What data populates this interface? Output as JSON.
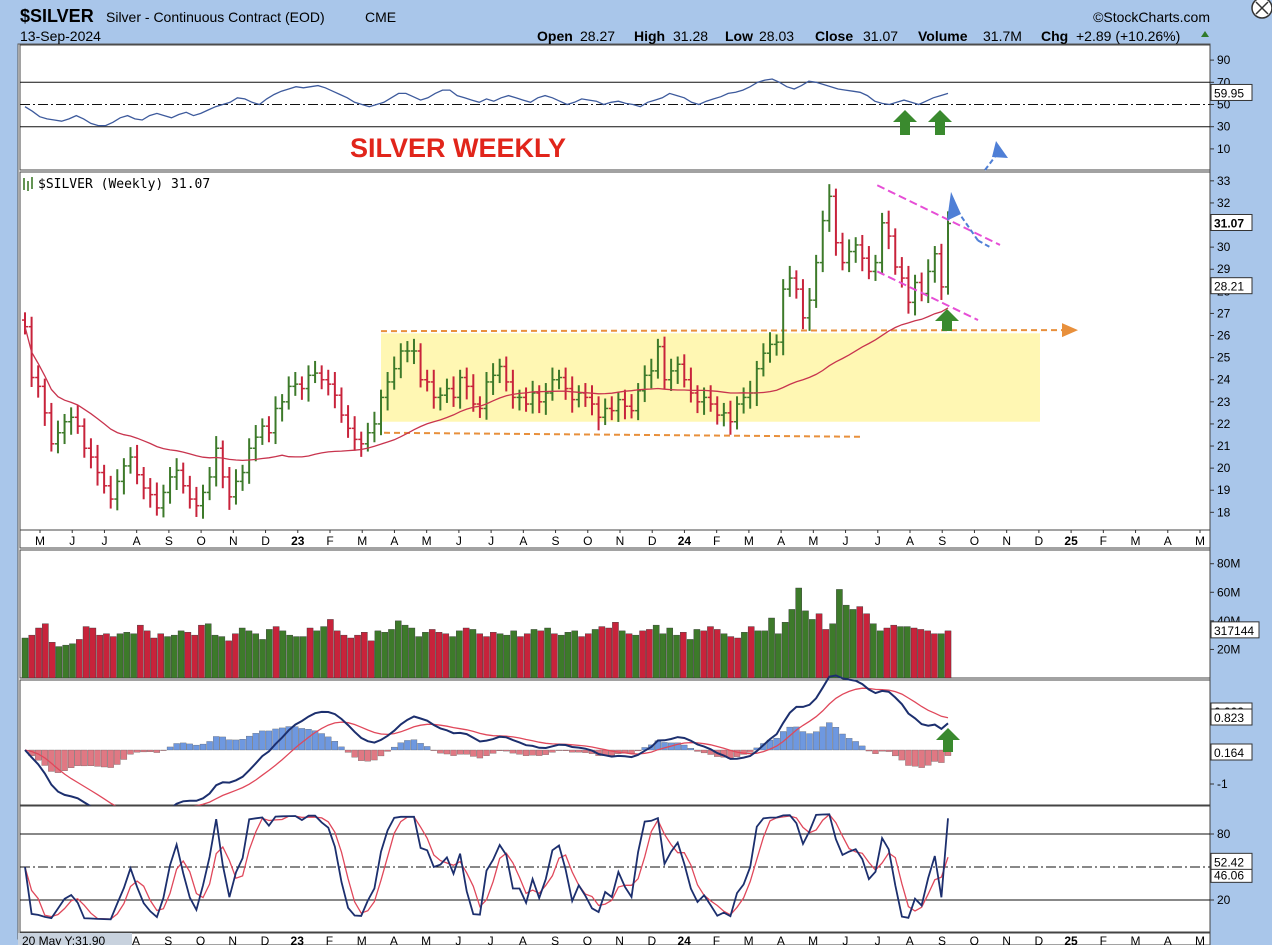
{
  "header": {
    "symbol": "$SILVER",
    "name": "Silver - Continuous Contract (EOD)",
    "exchange": "CME",
    "date": "13-Sep-2024",
    "brand": "©StockCharts.com",
    "quote": {
      "open_label": "Open",
      "open": "28.27",
      "high_label": "High",
      "high": "31.28",
      "low_label": "Low",
      "low": "28.03",
      "close_label": "Close",
      "close": "31.07",
      "volume_label": "Volume",
      "volume": "31.7M",
      "chg_label": "Chg",
      "chg": "+2.89 (+10.26%)"
    }
  },
  "chart_title": "SILVER WEEKLY",
  "price_legend": "$SILVER (Weekly) 31.07",
  "footer_readout": "20 May Y:31.90",
  "colors": {
    "up": "#3d7a2a",
    "down": "#c8233b",
    "ma": "#c8344e",
    "macd": "#1c2f6e",
    "signal": "#e0485b",
    "hist_pos": "#6e98e0",
    "hist_neg": "#e07883",
    "channel": "#e64ed6",
    "range": "#e8903c",
    "box": "#fff5a0",
    "arrow_green": "#3a8a2e",
    "arrow_blue": "#4f7fd6"
  },
  "chart_data": {
    "type": "candlestick",
    "timeframe": "weekly",
    "x_axis_labels": [
      "M",
      "J",
      "J",
      "A",
      "S",
      "O",
      "N",
      "D",
      "23",
      "F",
      "M",
      "A",
      "M",
      "J",
      "J",
      "A",
      "S",
      "O",
      "N",
      "D",
      "24",
      "F",
      "M",
      "A",
      "M",
      "J",
      "J",
      "A",
      "S",
      "O",
      "N",
      "D",
      "25",
      "F",
      "M",
      "A",
      "M"
    ],
    "x_axis_labels_bottom": [
      "A",
      "S",
      "O",
      "N",
      "D",
      "23",
      "F",
      "M",
      "A",
      "M",
      "J",
      "J",
      "A",
      "S",
      "O",
      "N",
      "D",
      "24",
      "F",
      "M",
      "A",
      "M",
      "J",
      "J",
      "A",
      "S",
      "O",
      "N",
      "D",
      "25",
      "F",
      "M",
      "A",
      "M"
    ],
    "price_panel": {
      "y_ticks": [
        18,
        19,
        20,
        21,
        22,
        23,
        24,
        25,
        26,
        27,
        28,
        29,
        30,
        31,
        32,
        33
      ],
      "ylim": [
        17.2,
        33.4
      ],
      "last": "31.07",
      "ma_last": "28.21",
      "weekly_closes": [
        26.4,
        24.1,
        23.7,
        22.5,
        21.1,
        21.6,
        22.1,
        22.3,
        21.9,
        20.9,
        20.5,
        19.8,
        19.2,
        18.6,
        19.4,
        20.1,
        20.5,
        19.7,
        19.1,
        18.8,
        18.2,
        18.9,
        19.6,
        19.9,
        19.2,
        18.6,
        18.3,
        18.9,
        19.6,
        20.9,
        19.6,
        18.7,
        19.4,
        19.8,
        20.9,
        21.4,
        21.9,
        21.6,
        22.7,
        23.0,
        23.7,
        23.8,
        23.6,
        24.2,
        24.3,
        24.0,
        23.8,
        23.3,
        22.4,
        21.8,
        21.3,
        21.1,
        21.6,
        22.0,
        23.2,
        23.9,
        24.5,
        25.3,
        25.3,
        25.3,
        24.0,
        23.9,
        23.2,
        23.3,
        23.6,
        23.2,
        24.1,
        23.7,
        22.9,
        22.7,
        23.9,
        24.2,
        24.6,
        23.9,
        23.2,
        23.2,
        22.9,
        23.4,
        23.0,
        23.4,
        24.0,
        24.1,
        23.6,
        23.1,
        23.4,
        23.2,
        22.9,
        22.3,
        22.7,
        22.6,
        23.1,
        22.8,
        22.6,
        23.5,
        24.2,
        24.4,
        25.5,
        24.0,
        24.4,
        24.7,
        24.0,
        23.4,
        23.0,
        23.2,
        22.9,
        22.4,
        22.5,
        22.1,
        22.9,
        23.2,
        23.4,
        24.5,
        25.2,
        25.6,
        25.7,
        28.1,
        28.6,
        28.1,
        26.8,
        27.6,
        29.3,
        31.2,
        32.3,
        30.2,
        29.3,
        29.8,
        30.1,
        29.5,
        28.9,
        29.3,
        31.1,
        30.5,
        29.1,
        28.6,
        27.5,
        28.4,
        27.9,
        28.9,
        29.7,
        28.2,
        31.07
      ],
      "annotations": {
        "consolidation_box": {
          "from_index": 54,
          "to_index": 168,
          "low": 22.1,
          "high": 26.1
        },
        "resistance_line": 26.2,
        "support_line": 21.6,
        "channel_upper": [
          [
            132,
            32.8
          ],
          [
            160,
            30.1
          ]
        ],
        "channel_lower": [
          [
            132,
            28.9
          ],
          [
            160,
            26.7
          ]
        ]
      }
    },
    "rsi_panel": {
      "y_ticks": [
        10,
        30,
        50,
        70,
        90
      ],
      "ylim": [
        0,
        100
      ],
      "last": "59.95",
      "series": [
        48,
        44,
        39,
        37,
        36,
        35,
        37,
        40,
        37,
        33,
        31,
        31,
        34,
        38,
        40,
        37,
        36,
        40,
        42,
        40,
        38,
        41,
        43,
        40,
        42,
        45,
        48,
        50,
        52,
        56,
        55,
        52,
        50,
        55,
        59,
        62,
        64,
        66,
        65,
        66,
        67,
        65,
        62,
        59,
        56,
        52,
        50,
        48,
        50,
        52,
        56,
        60,
        60,
        57,
        54,
        56,
        60,
        63,
        63,
        58,
        56,
        54,
        52,
        55,
        53,
        56,
        58,
        56,
        54,
        52,
        56,
        58,
        56,
        53,
        50,
        52,
        55,
        54,
        53,
        50,
        52,
        53,
        51,
        50,
        48,
        52,
        54,
        56,
        60,
        58,
        56,
        52,
        50,
        53,
        55,
        57,
        60,
        61,
        63,
        66,
        70,
        72,
        73,
        70,
        66,
        64,
        67,
        71,
        70,
        68,
        66,
        64,
        63,
        62,
        61,
        58,
        53,
        51,
        50,
        52,
        54,
        52,
        50,
        53,
        56,
        58,
        60
      ]
    },
    "volume_panel": {
      "y_ticks": [
        "20M",
        "40M",
        "60M",
        "80M"
      ],
      "ylim": [
        0,
        84
      ],
      "last_label": "317144",
      "values": [
        28,
        30,
        35,
        38,
        25,
        22,
        23,
        24,
        27,
        36,
        35,
        30,
        31,
        29,
        31,
        32,
        31,
        37,
        33,
        28,
        31,
        29,
        30,
        33,
        32,
        30,
        37,
        38,
        30,
        29,
        26,
        31,
        35,
        33,
        31,
        27,
        34,
        36,
        33,
        30,
        29,
        29,
        35,
        33,
        36,
        41,
        33,
        30,
        28,
        30,
        32,
        26,
        33,
        32,
        34,
        40,
        37,
        35,
        29,
        32,
        34,
        32,
        31,
        29,
        33,
        35,
        34,
        31,
        29,
        32,
        31,
        30,
        33,
        29,
        31,
        34,
        33,
        35,
        31,
        30,
        32,
        33,
        29,
        31,
        34,
        36,
        35,
        39,
        33,
        31,
        30,
        33,
        34,
        37,
        31,
        35,
        30,
        32,
        27,
        34,
        33,
        36,
        34,
        31,
        29,
        28,
        32,
        36,
        33,
        33,
        42,
        31,
        39,
        48,
        63,
        47,
        41,
        45,
        34,
        38,
        62,
        51,
        48,
        50,
        45,
        38,
        33,
        35,
        37,
        36,
        36,
        35,
        34,
        33,
        31,
        31,
        33
      ]
    },
    "macd_panel": {
      "y_ticks": [
        "-1"
      ],
      "labels": {
        "macd": "0.823",
        "hist": "0.164",
        "overlap": "0.903"
      }
    },
    "stoch_panel": {
      "y_ticks": [
        20,
        80
      ],
      "ylim": [
        0,
        100
      ],
      "last": "52.42",
      "overlap": "46.06"
    }
  }
}
